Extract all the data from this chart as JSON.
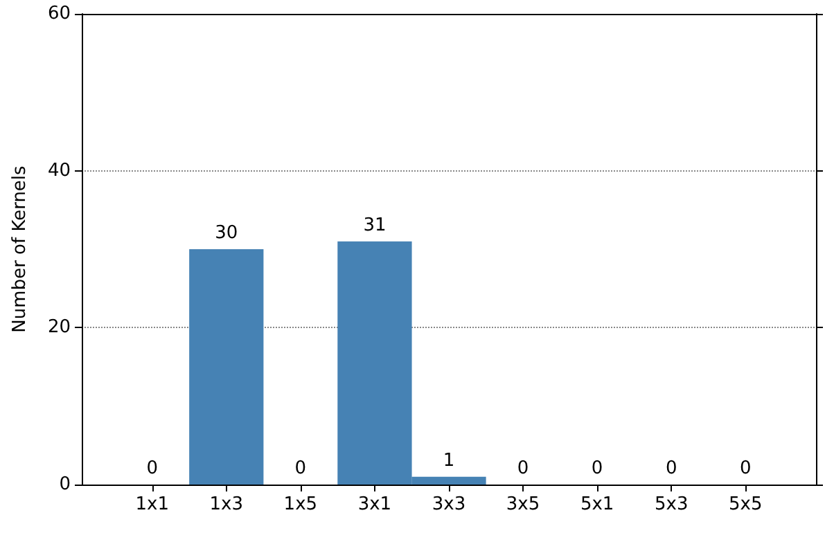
{
  "chart_data": {
    "type": "bar",
    "ylabel": "Number of Kernels",
    "categories": [
      "1x1",
      "1x3",
      "1x5",
      "3x1",
      "3x3",
      "3x5",
      "5x1",
      "5x3",
      "5x5"
    ],
    "values": [
      0,
      30,
      0,
      31,
      1,
      0,
      0,
      0,
      0
    ],
    "color": "#4682b4",
    "ylim": [
      0,
      60
    ],
    "yticks": [
      0,
      20,
      40,
      60
    ],
    "grid": "y",
    "data_labels": true
  }
}
